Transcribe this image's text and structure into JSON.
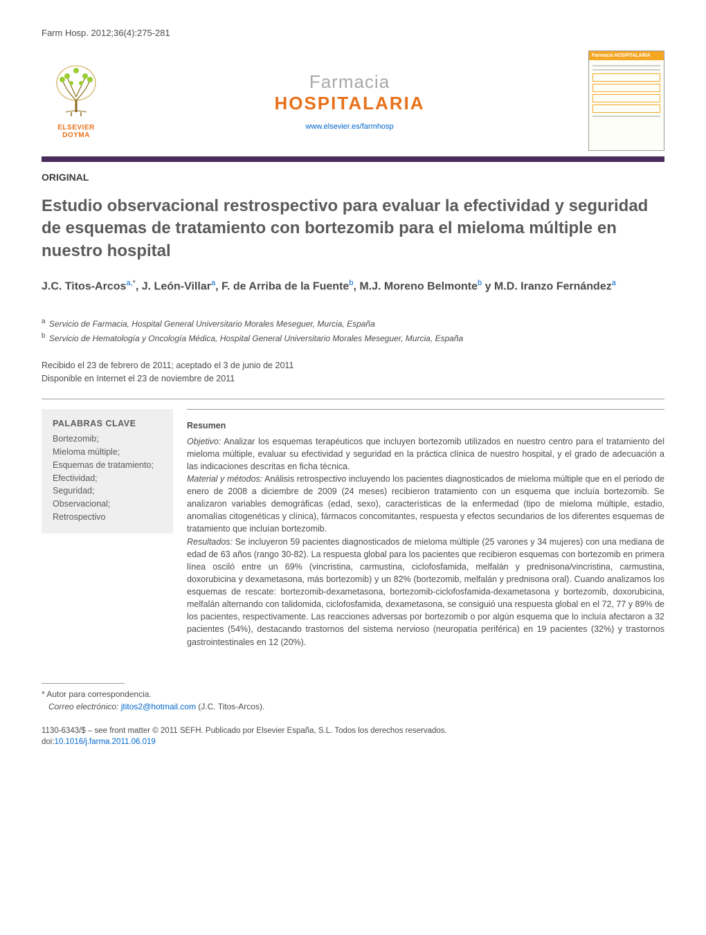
{
  "citation": "Farm Hosp. 2012;36(4):275-281",
  "header": {
    "publisher_line1": "ELSEVIER",
    "publisher_line2": "DOYMA",
    "journal_line1": "Farmacia",
    "journal_line2": "HOSPITALARIA",
    "url": "www.elsevier.es/farmhosp",
    "cover_label": "Farmacia HOSPITALARIA"
  },
  "article": {
    "type": "ORIGINAL",
    "title": "Estudio observacional restrospectivo para evaluar la efectividad y seguridad de esquemas de tratamiento con bortezomib para el mieloma múltiple en nuestro hospital",
    "authors_html": "J.C. Titos-Arcos<sup>a,</sup><sup class='star'>*</sup>, J. León-Villar<sup>a</sup>, F. de Arriba de la Fuente<sup>b</sup>, M.J. Moreno Belmonte<sup>b</sup> y M.D. Iranzo Fernández<sup>a</sup>",
    "affil_a": "Servicio de Farmacia, Hospital General Universitario Morales Meseguer, Murcia, España",
    "affil_b": "Servicio de Hematología y Oncología Médica, Hospital General Universitario Morales Meseguer, Murcia, España",
    "received": "Recibido el 23 de febrero de 2011; aceptado el 3 de junio de 2011",
    "online": "Disponible en Internet el 23 de noviembre de 2011"
  },
  "keywords": {
    "heading": "PALABRAS CLAVE",
    "items": "Bortezomib;\nMieloma múltiple;\nEsquemas de tratamiento;\nEfectividad;\nSeguridad;\nObservacional;\nRetrospectivo"
  },
  "abstract": {
    "heading": "Resumen",
    "objetivo_label": "Objetivo:",
    "objetivo_text": " Analizar los esquemas terapéuticos que incluyen bortezomib utilizados en nuestro centro para el tratamiento del mieloma múltiple, evaluar su efectividad y seguridad en la práctica clínica de nuestro hospital, y el grado de adecuación a las indicaciones descritas en ficha técnica.",
    "material_label": "Material y métodos:",
    "material_text": " Análisis retrospectivo incluyendo los pacientes diagnosticados de mieloma múltiple que en el periodo de enero de 2008 a diciembre de 2009 (24 meses) recibieron tratamiento con un esquema que incluía bortezomib. Se analizaron variables demográficas (edad, sexo), características de la enfermedad (tipo de mieloma múltiple, estadio, anomalías citogenéticas y clínica), fármacos concomitantes, respuesta y efectos secundarios de los diferentes esquemas de tratamiento que incluían bortezomib.",
    "resultados_label": "Resultados:",
    "resultados_text": " Se incluyeron 59 pacientes diagnosticados de mieloma múltiple (25 varones y 34 mujeres) con una mediana de edad de 63 años (rango 30-82). La respuesta global para los pacientes que recibieron esquemas con bortezomib en primera línea osciló entre un 69% (vincristina, carmustina, ciclofosfamida, melfalán y prednisona/vincristina, carmustina, doxorubicina y dexametasona, más bortezomib) y un 82% (bortezomib, melfalán y prednisona oral). Cuando analizamos los esquemas de rescate: bortezomib-dexametasona, bortezomib-ciclofosfamida-dexametasona y bortezomib, doxorubicina, melfalán alternando con talidomida, ciclofosfamida, dexametasona, se consiguió una respuesta global en el 72, 77 y 89% de los pacientes, respectivamente. Las reacciones adversas por bortezomib o por algún esquema que lo incluía afectaron a 32 pacientes (54%), destacando trastornos del sistema nervioso (neuropatía periférica) en 19 pacientes (32%) y trastornos gastrointestinales en 12 (20%)."
  },
  "footnote": {
    "corr": "* Autor para correspondencia.",
    "email_label": "Correo electrónico:",
    "email": "jtitos2@hotmail.com",
    "email_suffix": " (J.C. Titos-Arcos)."
  },
  "copyright": {
    "line1": "1130-6343/$ – see front matter © 2011 SEFH. Publicado por Elsevier España, S.L. Todos los derechos reservados.",
    "doi_label": "doi:",
    "doi": "10.1016/j.farma.2011.06.019"
  },
  "colors": {
    "orange": "#e8701a",
    "purple_bar": "#4a2c5a",
    "link": "#0066cc",
    "text": "#4a4a4a",
    "kw_bg": "#efefef"
  }
}
